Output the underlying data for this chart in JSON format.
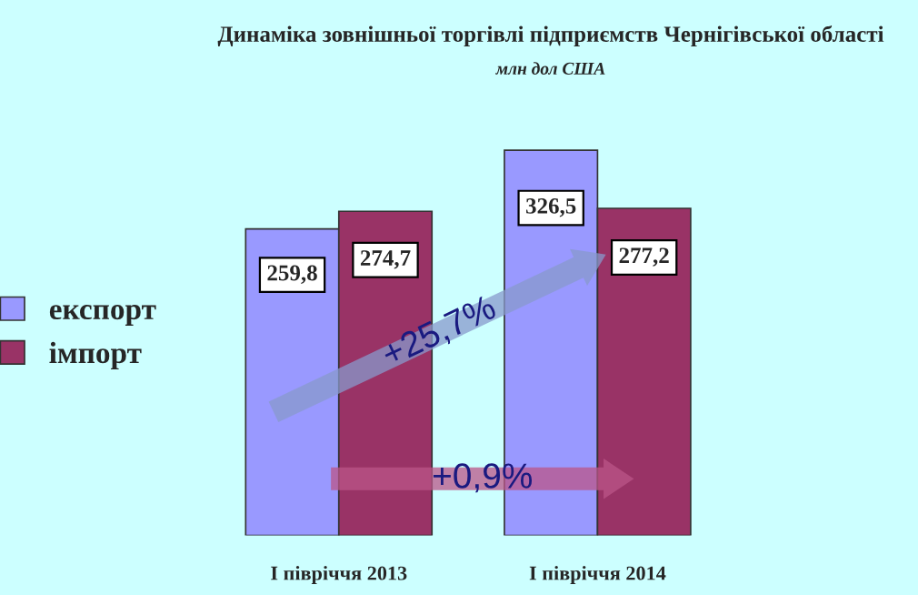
{
  "chart_data": {
    "type": "bar",
    "title": "Динаміка зовнішньої торгівлі підприємств Чернігівської області",
    "subtitle": "млн дол США",
    "categories": [
      "I півріччя 2013",
      "I півріччя 2014"
    ],
    "series": [
      {
        "name": "експорт",
        "color": "#9999ff",
        "values": [
          259.8,
          326.5
        ],
        "value_labels": [
          "259,8",
          "326,5"
        ]
      },
      {
        "name": "імпорт",
        "color": "#993366",
        "values": [
          274.7,
          277.2
        ],
        "value_labels": [
          "274,7",
          "277,2"
        ]
      }
    ],
    "annotations": [
      "+25,7%",
      "+0,9%"
    ],
    "legend": "left",
    "grid": false
  }
}
